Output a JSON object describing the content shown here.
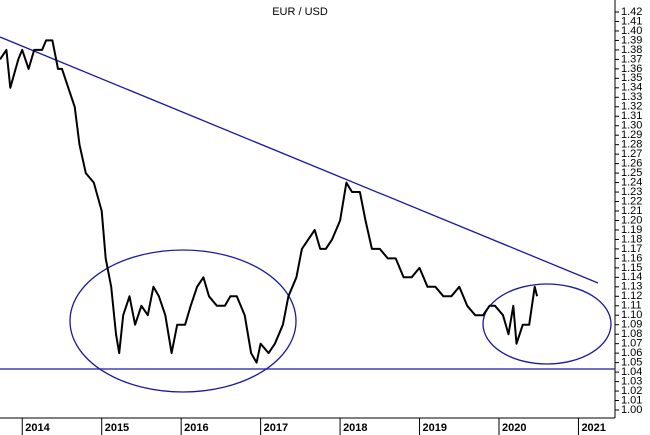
{
  "chart_data": {
    "type": "line",
    "title": "EUR / USD",
    "x": [
      2013.72,
      2013.8,
      2013.85,
      2013.95,
      2014.0,
      2014.08,
      2014.15,
      2014.25,
      2014.3,
      2014.38,
      2014.45,
      2014.5,
      2014.58,
      2014.66,
      2014.72,
      2014.8,
      2014.9,
      2015.0,
      2015.05,
      2015.12,
      2015.18,
      2015.22,
      2015.27,
      2015.35,
      2015.42,
      2015.5,
      2015.58,
      2015.65,
      2015.72,
      2015.8,
      2015.88,
      2015.95,
      2016.05,
      2016.12,
      2016.2,
      2016.28,
      2016.35,
      2016.45,
      2016.55,
      2016.62,
      2016.7,
      2016.8,
      2016.88,
      2016.95,
      2017.0,
      2017.1,
      2017.18,
      2017.28,
      2017.35,
      2017.45,
      2017.52,
      2017.6,
      2017.68,
      2017.75,
      2017.82,
      2017.9,
      2018.0,
      2018.08,
      2018.15,
      2018.25,
      2018.32,
      2018.4,
      2018.5,
      2018.6,
      2018.7,
      2018.8,
      2018.9,
      2019.0,
      2019.1,
      2019.2,
      2019.3,
      2019.4,
      2019.5,
      2019.6,
      2019.7,
      2019.8,
      2019.88,
      2019.95,
      2020.05,
      2020.12,
      2020.18,
      2020.22,
      2020.3,
      2020.38,
      2020.45,
      2020.48
    ],
    "series": [
      {
        "color": "#000000",
        "values": [
          1.37,
          1.38,
          1.34,
          1.37,
          1.38,
          1.36,
          1.38,
          1.38,
          1.39,
          1.39,
          1.36,
          1.36,
          1.34,
          1.32,
          1.28,
          1.25,
          1.24,
          1.21,
          1.16,
          1.13,
          1.08,
          1.06,
          1.1,
          1.12,
          1.09,
          1.11,
          1.1,
          1.13,
          1.12,
          1.1,
          1.06,
          1.09,
          1.09,
          1.11,
          1.13,
          1.14,
          1.12,
          1.11,
          1.11,
          1.12,
          1.12,
          1.1,
          1.06,
          1.05,
          1.07,
          1.06,
          1.07,
          1.09,
          1.12,
          1.14,
          1.17,
          1.18,
          1.19,
          1.17,
          1.17,
          1.18,
          1.2,
          1.24,
          1.23,
          1.23,
          1.2,
          1.17,
          1.17,
          1.16,
          1.16,
          1.14,
          1.14,
          1.15,
          1.13,
          1.13,
          1.12,
          1.12,
          1.13,
          1.11,
          1.1,
          1.1,
          1.11,
          1.11,
          1.1,
          1.08,
          1.11,
          1.07,
          1.09,
          1.09,
          1.13,
          1.12
        ]
      }
    ],
    "xlim": [
      2013.72,
      2021.46
    ],
    "xticks": [
      2014,
      2015,
      2016,
      2017,
      2018,
      2019,
      2020,
      2021
    ],
    "ylim": [
      1.0,
      1.42
    ],
    "yticks": [
      {
        "value": 1.0,
        "label": "1.00"
      },
      1.01,
      1.02,
      1.03,
      1.04,
      1.05,
      1.06,
      1.07,
      1.08,
      1.09,
      {
        "value": 1.1,
        "label": "1.10"
      },
      1.11,
      1.12,
      1.13,
      1.14,
      1.15,
      1.16,
      1.17,
      1.18,
      1.19,
      {
        "value": 1.2,
        "label": "1.20"
      },
      1.21,
      1.22,
      1.23,
      1.24,
      1.25,
      1.26,
      1.27,
      1.28,
      1.29,
      {
        "value": 1.3,
        "label": "1.30"
      },
      1.31,
      1.32,
      1.33,
      1.34,
      1.35,
      1.36,
      1.37,
      1.38,
      1.39,
      {
        "value": 1.4,
        "label": "1.40"
      },
      1.41,
      1.42
    ],
    "grid": false
  }
}
